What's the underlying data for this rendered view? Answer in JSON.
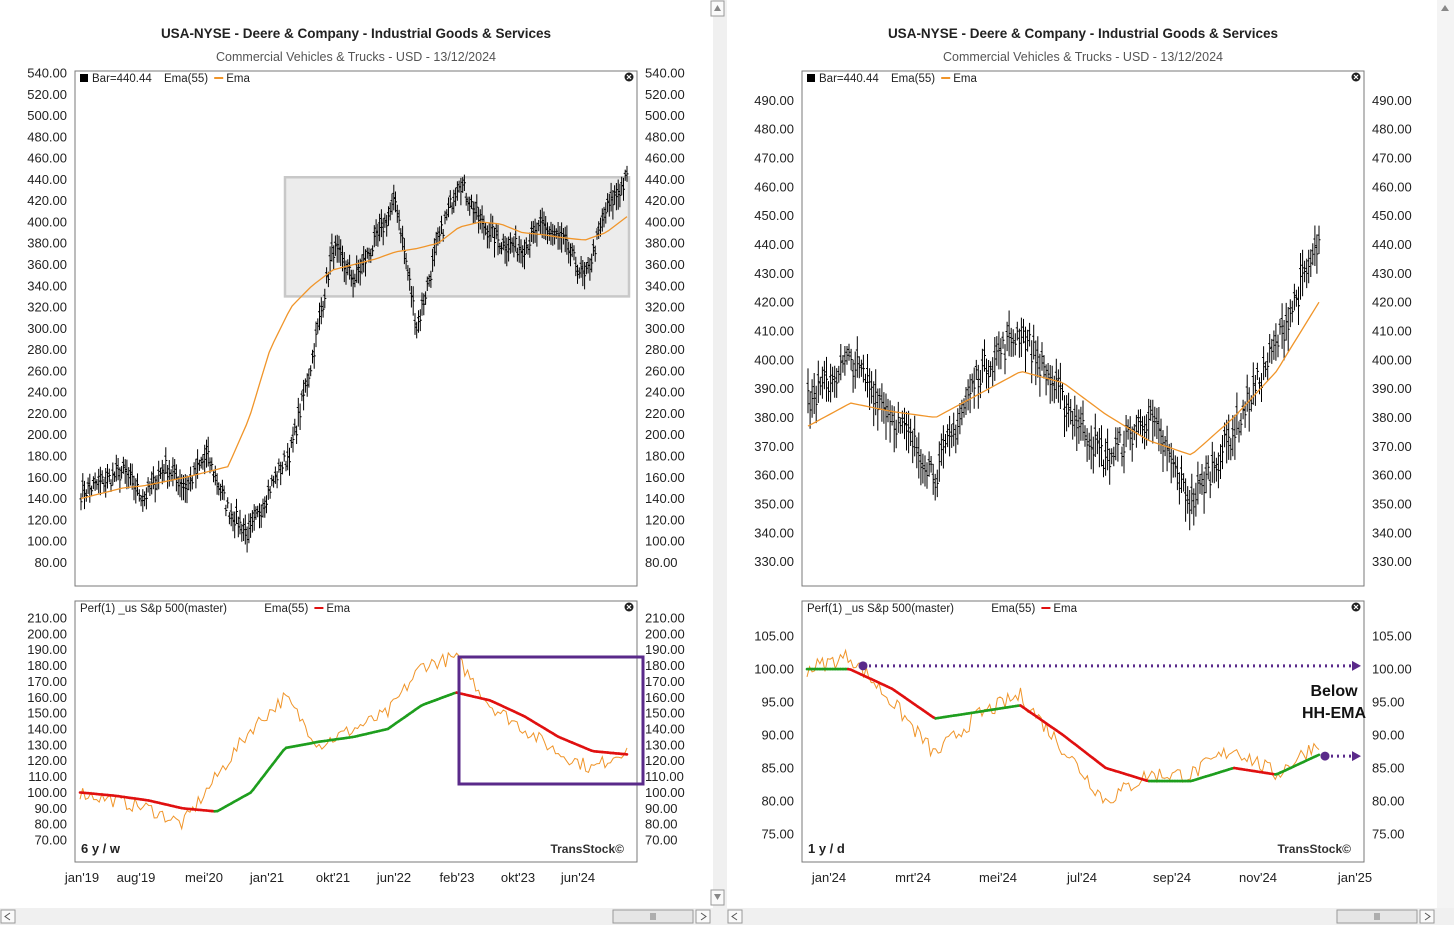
{
  "left": {
    "title": "USA-NYSE - Deere & Company - Industrial Goods & Services",
    "subtitle": "Commercial Vehicles & Trucks - USD - 13/12/2024",
    "price_legend": [
      "Bar=440.44",
      "Ema(55)",
      "Ema"
    ],
    "perf_legend": [
      "Perf(1) _us S&p 500(master)",
      "Ema(55)",
      "Ema"
    ],
    "period_label": "6 y / w",
    "watermark": "TransStock©",
    "x_labels": [
      "jan'19",
      "aug'19",
      "mei'20",
      "jan'21",
      "okt'21",
      "jun'22",
      "feb'23",
      "okt'23",
      "jun'24"
    ]
  },
  "right": {
    "title": "USA-NYSE - Deere & Company - Industrial Goods & Services",
    "subtitle": "Commercial Vehicles & Trucks - USD - 13/12/2024",
    "price_legend": [
      "Bar=440.44",
      "Ema(55)",
      "Ema"
    ],
    "perf_legend": [
      "Perf(1) _us S&p 500(master)",
      "Ema(55)",
      "Ema"
    ],
    "period_label": "1 y / d",
    "watermark": "TransStock©",
    "annotation": [
      "Below",
      "HH-EMA"
    ],
    "x_labels": [
      "jan'24",
      "mrt'24",
      "mei'24",
      "jul'24",
      "sep'24",
      "nov'24",
      "jan'25"
    ]
  },
  "colors": {
    "bars": "#000000",
    "ema_orange": "#f0952a",
    "ema_up": "#1e9e1e",
    "ema_down": "#e01010",
    "perf_line": "#f0952a",
    "box_purple": "#5a2a8a",
    "range_box_fill": "#ececec",
    "range_box_stroke": "#c8c8c8"
  },
  "chart_data": [
    {
      "type": "line",
      "panel": "left-price",
      "ylim": [
        70,
        540
      ],
      "yticks": [
        80,
        100,
        120,
        140,
        160,
        180,
        200,
        220,
        240,
        260,
        280,
        300,
        320,
        340,
        360,
        380,
        400,
        420,
        440,
        460,
        480,
        500,
        520,
        540
      ],
      "x": [
        "2019-01",
        "2019-04",
        "2019-08",
        "2019-12",
        "2020-03",
        "2020-05",
        "2020-08",
        "2020-11",
        "2021-01",
        "2021-03",
        "2021-06",
        "2021-10",
        "2022-01",
        "2022-05",
        "2022-06",
        "2022-08",
        "2022-11",
        "2023-02",
        "2023-04",
        "2023-08",
        "2023-10",
        "2024-01",
        "2024-04",
        "2024-06",
        "2024-09",
        "2024-11",
        "2024-12"
      ],
      "series": [
        {
          "name": "Bar",
          "style": "ohlc",
          "values": [
            145,
            155,
            165,
            140,
            170,
            150,
            180,
            130,
            105,
            150,
            185,
            270,
            375,
            345,
            380,
            420,
            300,
            380,
            440,
            400,
            380,
            375,
            395,
            380,
            345,
            410,
            440
          ]
        },
        {
          "name": "Ema",
          "values": [
            140,
            145,
            150,
            152,
            156,
            160,
            165,
            170,
            215,
            280,
            320,
            340,
            355,
            360,
            365,
            372,
            375,
            380,
            395,
            400,
            398,
            390,
            388,
            385,
            383,
            390,
            405
          ]
        }
      ],
      "range_box": {
        "y": [
          330,
          442
        ]
      }
    },
    {
      "type": "line",
      "panel": "left-perf",
      "ylim": [
        65,
        215
      ],
      "yticks": [
        70,
        80,
        90,
        100,
        110,
        120,
        130,
        140,
        150,
        160,
        170,
        180,
        190,
        200,
        210
      ],
      "x": [
        "2019-01",
        "2019-06",
        "2019-12",
        "2020-05",
        "2020-10",
        "2021-01",
        "2021-06",
        "2021-10",
        "2022-03",
        "2022-06",
        "2022-11",
        "2023-02",
        "2023-06",
        "2023-10",
        "2024-03",
        "2024-08",
        "2024-12"
      ],
      "series": [
        {
          "name": "Perf(1) _us S&p 500(master)",
          "values": [
            100,
            95,
            90,
            80,
            110,
            140,
            160,
            130,
            140,
            150,
            180,
            185,
            155,
            140,
            125,
            115,
            128
          ]
        },
        {
          "name": "Ema",
          "values": [
            100,
            98,
            95,
            90,
            88,
            100,
            128,
            132,
            135,
            140,
            155,
            163,
            158,
            148,
            135,
            126,
            124
          ]
        }
      ]
    },
    {
      "type": "line",
      "panel": "right-price",
      "ylim": [
        325,
        495
      ],
      "yticks": [
        330,
        340,
        350,
        360,
        370,
        380,
        390,
        400,
        410,
        420,
        430,
        440,
        450,
        460,
        470,
        480,
        490
      ],
      "x": [
        "2023-12",
        "2024-01",
        "2024-02",
        "2024-03",
        "2024-04",
        "2024-05",
        "2024-06",
        "2024-07",
        "2024-08",
        "2024-09",
        "2024-10",
        "2024-11",
        "2024-12"
      ],
      "series": [
        {
          "name": "Bar",
          "style": "ohlc",
          "values": [
            385,
            400,
            380,
            360,
            395,
            410,
            385,
            365,
            380,
            350,
            375,
            405,
            440
          ]
        },
        {
          "name": "Ema",
          "values": [
            377,
            385,
            382,
            380,
            388,
            396,
            392,
            381,
            372,
            367,
            380,
            396,
            420
          ]
        }
      ]
    },
    {
      "type": "line",
      "panel": "right-perf",
      "ylim": [
        73,
        107
      ],
      "yticks": [
        75,
        80,
        85,
        90,
        95,
        100,
        105
      ],
      "x": [
        "2023-12",
        "2024-01",
        "2024-02",
        "2024-03",
        "2024-04",
        "2024-05",
        "2024-06",
        "2024-07",
        "2024-08",
        "2024-09",
        "2024-10",
        "2024-11",
        "2024-12"
      ],
      "series": [
        {
          "name": "Perf(1) _us S&p 500(master)",
          "values": [
            100,
            102,
            95,
            87,
            93,
            96,
            88,
            80,
            84,
            84,
            88,
            84,
            89
          ]
        },
        {
          "name": "Ema",
          "values": [
            100,
            100,
            97,
            92.5,
            93.5,
            94.5,
            90,
            85,
            83,
            83,
            85,
            84,
            87
          ]
        }
      ],
      "reference_levels": [
        100.5,
        86.8
      ]
    }
  ]
}
